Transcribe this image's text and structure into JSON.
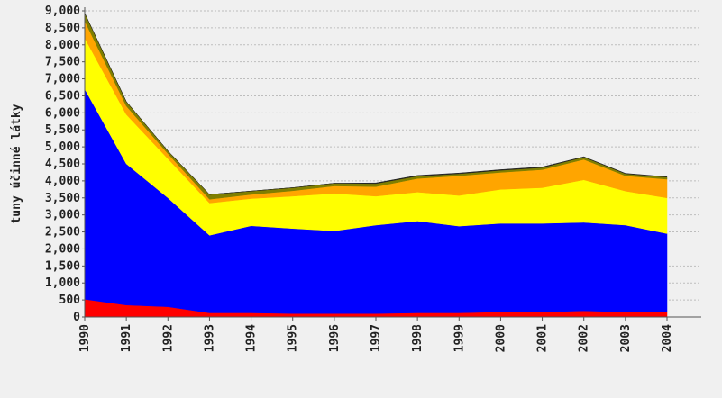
{
  "chart_data": {
    "type": "area",
    "stacked": true,
    "title": "",
    "xlabel": "",
    "ylabel": "tuny účinné látky",
    "ylim": [
      0,
      9000
    ],
    "yticks": [
      0,
      500,
      1000,
      1500,
      2000,
      2500,
      3000,
      3500,
      4000,
      4500,
      5000,
      5500,
      6000,
      6500,
      7000,
      7500,
      8000,
      8500,
      9000
    ],
    "ytick_labels": [
      "0",
      "500",
      "1,000",
      "1,500",
      "2,000",
      "2,500",
      "3,000",
      "3,500",
      "4,000",
      "4,500",
      "5,000",
      "5,500",
      "6,000",
      "6,500",
      "7,000",
      "7,500",
      "8,000",
      "8,500",
      "9,000"
    ],
    "x": [
      "1990",
      "1991",
      "1992",
      "1993",
      "1994",
      "1995",
      "1996",
      "1997",
      "1998",
      "1999",
      "2000",
      "2001",
      "2002",
      "2003",
      "2004"
    ],
    "grid": true,
    "legend": "none",
    "series": [
      {
        "color": "#ff0000",
        "values": [
          520,
          350,
          300,
          120,
          120,
          100,
          100,
          100,
          120,
          120,
          150,
          150,
          180,
          150,
          150
        ]
      },
      {
        "color": "#0000ff",
        "values": [
          6180,
          4150,
          3200,
          2280,
          2560,
          2500,
          2430,
          2600,
          2700,
          2550,
          2600,
          2600,
          2600,
          2550,
          2300
        ]
      },
      {
        "color": "#ffff00",
        "values": [
          1500,
          1450,
          1150,
          950,
          800,
          950,
          1100,
          850,
          850,
          900,
          1000,
          1050,
          1250,
          1000,
          1050
        ]
      },
      {
        "color": "#ffa500",
        "values": [
          500,
          250,
          150,
          110,
          120,
          160,
          220,
          280,
          400,
          580,
          500,
          530,
          600,
          450,
          550
        ]
      },
      {
        "color": "#7f7f00",
        "values": [
          230,
          130,
          80,
          140,
          100,
          90,
          80,
          90,
          70,
          60,
          60,
          60,
          70,
          60,
          60
        ]
      },
      {
        "color": "#222222",
        "values": [
          0,
          0,
          0,
          0,
          0,
          0,
          0,
          20,
          20,
          20,
          20,
          20,
          10,
          10,
          10
        ]
      }
    ]
  }
}
